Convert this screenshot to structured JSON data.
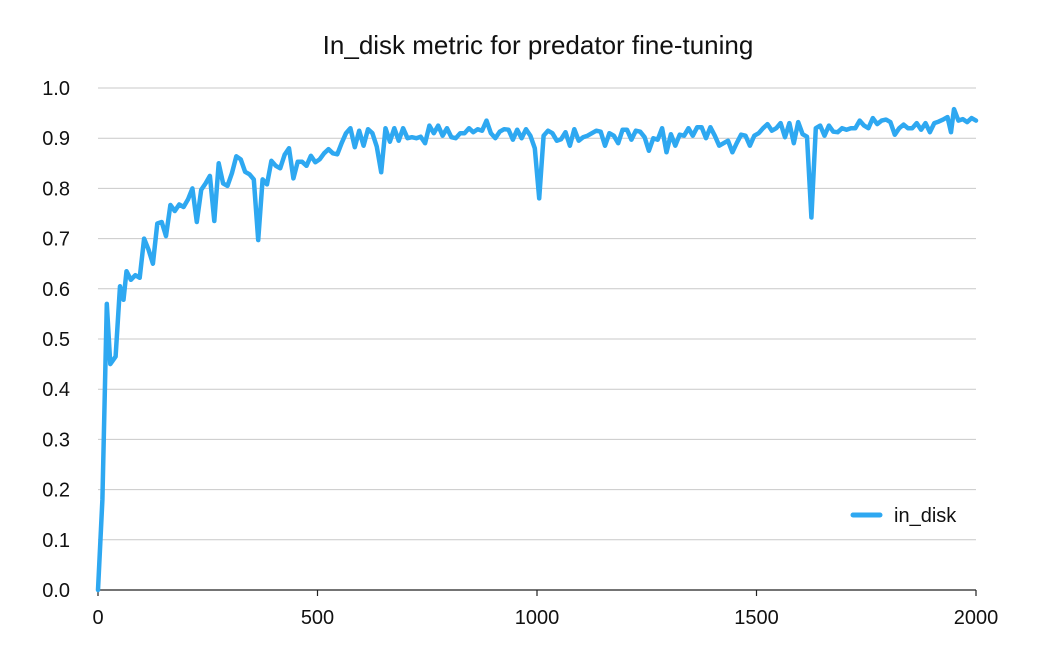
{
  "chart_data": {
    "type": "line",
    "title": "In_disk metric for predator fine-tuning",
    "xlabel": "",
    "ylabel": "",
    "xlim": [
      0,
      2000
    ],
    "ylim": [
      0.0,
      1.0
    ],
    "x_ticks": [
      "0",
      "500",
      "1000",
      "1500",
      "2000"
    ],
    "y_ticks": [
      "0.0",
      "0.1",
      "0.2",
      "0.3",
      "0.4",
      "0.5",
      "0.6",
      "0.7",
      "0.8",
      "0.9",
      "1.0"
    ],
    "grid": "horizontal",
    "legend_position": "right",
    "series": [
      {
        "name": "in_disk",
        "color": "#2ea8f1",
        "points": [
          [
            0,
            0.0
          ],
          [
            10,
            0.18
          ],
          [
            20,
            0.57
          ],
          [
            28,
            0.45
          ],
          [
            40,
            0.465
          ],
          [
            50,
            0.605
          ],
          [
            58,
            0.578
          ],
          [
            65,
            0.635
          ],
          [
            75,
            0.618
          ],
          [
            85,
            0.627
          ],
          [
            95,
            0.622
          ],
          [
            105,
            0.7
          ],
          [
            115,
            0.678
          ],
          [
            125,
            0.65
          ],
          [
            135,
            0.73
          ],
          [
            145,
            0.733
          ],
          [
            155,
            0.705
          ],
          [
            165,
            0.767
          ],
          [
            175,
            0.755
          ],
          [
            185,
            0.768
          ],
          [
            195,
            0.763
          ],
          [
            205,
            0.778
          ],
          [
            215,
            0.8
          ],
          [
            225,
            0.733
          ],
          [
            235,
            0.797
          ],
          [
            245,
            0.81
          ],
          [
            255,
            0.825
          ],
          [
            265,
            0.735
          ],
          [
            275,
            0.85
          ],
          [
            285,
            0.81
          ],
          [
            295,
            0.805
          ],
          [
            305,
            0.83
          ],
          [
            315,
            0.864
          ],
          [
            325,
            0.858
          ],
          [
            335,
            0.833
          ],
          [
            345,
            0.828
          ],
          [
            355,
            0.818
          ],
          [
            365,
            0.697
          ],
          [
            375,
            0.818
          ],
          [
            385,
            0.808
          ],
          [
            395,
            0.855
          ],
          [
            405,
            0.845
          ],
          [
            415,
            0.84
          ],
          [
            425,
            0.867
          ],
          [
            435,
            0.88
          ],
          [
            445,
            0.82
          ],
          [
            455,
            0.853
          ],
          [
            465,
            0.853
          ],
          [
            475,
            0.845
          ],
          [
            485,
            0.865
          ],
          [
            495,
            0.852
          ],
          [
            505,
            0.858
          ],
          [
            515,
            0.87
          ],
          [
            525,
            0.878
          ],
          [
            535,
            0.87
          ],
          [
            545,
            0.868
          ],
          [
            555,
            0.89
          ],
          [
            565,
            0.91
          ],
          [
            575,
            0.92
          ],
          [
            585,
            0.882
          ],
          [
            595,
            0.915
          ],
          [
            605,
            0.885
          ],
          [
            615,
            0.918
          ],
          [
            625,
            0.91
          ],
          [
            635,
            0.883
          ],
          [
            645,
            0.832
          ],
          [
            655,
            0.92
          ],
          [
            665,
            0.893
          ],
          [
            675,
            0.92
          ],
          [
            685,
            0.895
          ],
          [
            695,
            0.92
          ],
          [
            705,
            0.9
          ],
          [
            715,
            0.902
          ],
          [
            725,
            0.9
          ],
          [
            735,
            0.903
          ],
          [
            745,
            0.89
          ],
          [
            755,
            0.925
          ],
          [
            765,
            0.91
          ],
          [
            775,
            0.925
          ],
          [
            785,
            0.905
          ],
          [
            795,
            0.92
          ],
          [
            805,
            0.902
          ],
          [
            815,
            0.9
          ],
          [
            825,
            0.91
          ],
          [
            835,
            0.91
          ],
          [
            845,
            0.92
          ],
          [
            855,
            0.912
          ],
          [
            865,
            0.918
          ],
          [
            875,
            0.915
          ],
          [
            885,
            0.935
          ],
          [
            895,
            0.91
          ],
          [
            905,
            0.9
          ],
          [
            915,
            0.913
          ],
          [
            925,
            0.918
          ],
          [
            935,
            0.917
          ],
          [
            945,
            0.897
          ],
          [
            955,
            0.917
          ],
          [
            965,
            0.9
          ],
          [
            975,
            0.918
          ],
          [
            985,
            0.905
          ],
          [
            995,
            0.88
          ],
          [
            1005,
            0.78
          ],
          [
            1015,
            0.905
          ],
          [
            1025,
            0.915
          ],
          [
            1035,
            0.91
          ],
          [
            1045,
            0.895
          ],
          [
            1055,
            0.898
          ],
          [
            1065,
            0.912
          ],
          [
            1075,
            0.885
          ],
          [
            1085,
            0.918
          ],
          [
            1095,
            0.895
          ],
          [
            1105,
            0.902
          ],
          [
            1115,
            0.905
          ],
          [
            1125,
            0.91
          ],
          [
            1135,
            0.915
          ],
          [
            1145,
            0.913
          ],
          [
            1155,
            0.885
          ],
          [
            1165,
            0.91
          ],
          [
            1175,
            0.905
          ],
          [
            1185,
            0.89
          ],
          [
            1195,
            0.917
          ],
          [
            1205,
            0.917
          ],
          [
            1215,
            0.897
          ],
          [
            1225,
            0.915
          ],
          [
            1235,
            0.913
          ],
          [
            1245,
            0.902
          ],
          [
            1255,
            0.875
          ],
          [
            1265,
            0.9
          ],
          [
            1275,
            0.897
          ],
          [
            1285,
            0.92
          ],
          [
            1295,
            0.872
          ],
          [
            1305,
            0.908
          ],
          [
            1315,
            0.885
          ],
          [
            1325,
            0.907
          ],
          [
            1335,
            0.905
          ],
          [
            1345,
            0.92
          ],
          [
            1355,
            0.905
          ],
          [
            1365,
            0.922
          ],
          [
            1375,
            0.922
          ],
          [
            1385,
            0.9
          ],
          [
            1395,
            0.922
          ],
          [
            1405,
            0.905
          ],
          [
            1415,
            0.885
          ],
          [
            1425,
            0.89
          ],
          [
            1435,
            0.895
          ],
          [
            1445,
            0.872
          ],
          [
            1455,
            0.89
          ],
          [
            1465,
            0.907
          ],
          [
            1475,
            0.905
          ],
          [
            1485,
            0.885
          ],
          [
            1495,
            0.905
          ],
          [
            1505,
            0.91
          ],
          [
            1515,
            0.92
          ],
          [
            1525,
            0.928
          ],
          [
            1535,
            0.915
          ],
          [
            1545,
            0.92
          ],
          [
            1555,
            0.93
          ],
          [
            1565,
            0.902
          ],
          [
            1575,
            0.93
          ],
          [
            1585,
            0.89
          ],
          [
            1595,
            0.932
          ],
          [
            1605,
            0.908
          ],
          [
            1615,
            0.903
          ],
          [
            1625,
            0.742
          ],
          [
            1635,
            0.92
          ],
          [
            1645,
            0.925
          ],
          [
            1655,
            0.905
          ],
          [
            1665,
            0.925
          ],
          [
            1675,
            0.913
          ],
          [
            1685,
            0.912
          ],
          [
            1695,
            0.92
          ],
          [
            1705,
            0.917
          ],
          [
            1715,
            0.92
          ],
          [
            1725,
            0.92
          ],
          [
            1735,
            0.935
          ],
          [
            1745,
            0.925
          ],
          [
            1755,
            0.92
          ],
          [
            1765,
            0.94
          ],
          [
            1775,
            0.928
          ],
          [
            1785,
            0.935
          ],
          [
            1795,
            0.937
          ],
          [
            1805,
            0.932
          ],
          [
            1815,
            0.907
          ],
          [
            1825,
            0.92
          ],
          [
            1835,
            0.927
          ],
          [
            1845,
            0.92
          ],
          [
            1855,
            0.92
          ],
          [
            1865,
            0.93
          ],
          [
            1875,
            0.917
          ],
          [
            1885,
            0.93
          ],
          [
            1895,
            0.912
          ],
          [
            1905,
            0.93
          ],
          [
            1915,
            0.933
          ],
          [
            1925,
            0.937
          ],
          [
            1935,
            0.942
          ],
          [
            1943,
            0.912
          ],
          [
            1950,
            0.958
          ],
          [
            1960,
            0.935
          ],
          [
            1970,
            0.938
          ],
          [
            1980,
            0.932
          ],
          [
            1990,
            0.94
          ],
          [
            2000,
            0.935
          ]
        ]
      }
    ]
  }
}
